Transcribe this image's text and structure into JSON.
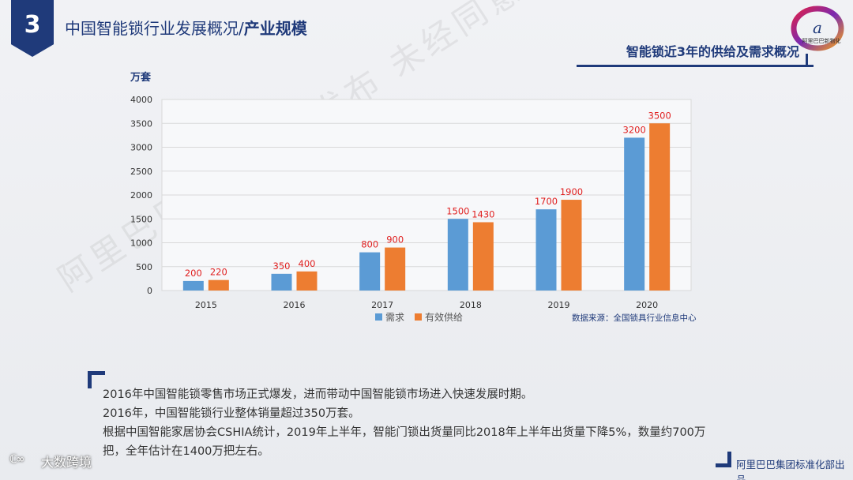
{
  "header": {
    "badge_number": "3",
    "title_main": "中国智能锁行业发展概况/",
    "title_strong": "产业规模",
    "logo_text": "阿里巴巴新物化"
  },
  "subtitle": "智能锁近3年的供给及需求概况",
  "watermark": "阿里巴巴标准化部发布 未经同意禁止转发",
  "chart_data": {
    "type": "bar",
    "unit_label": "万套",
    "categories": [
      "2015",
      "2016",
      "2017",
      "2018",
      "2019",
      "2020"
    ],
    "series": [
      {
        "name": "需求",
        "values": [
          200,
          350,
          800,
          1500,
          1700,
          3200
        ],
        "color": "#5b9bd5"
      },
      {
        "name": "有效供给",
        "values": [
          220,
          400,
          900,
          1430,
          1900,
          3500
        ],
        "color": "#ed7d31"
      }
    ],
    "yticks": [
      0,
      500,
      1000,
      1500,
      2000,
      2500,
      3000,
      3500,
      4000
    ],
    "ylim": [
      0,
      4000
    ],
    "label_color": "#e02020",
    "grid": true,
    "legend_position": "bottom",
    "source": "数据来源：全国锁具行业信息中心"
  },
  "notes": [
    "2016年中国智能锁零售市场正式爆发，进而带动中国智能锁市场进入快速发展时期。",
    "2016年，中国智能锁行业整体销量超过350万套。",
    "根据中国智能家居协会CSHIA统计，2019年上半年，智能门锁出货量同比2018年上半年出货量下降5%，数量约700万把，全年估计在1400万把左右。"
  ],
  "footer": {
    "right": "阿里巴巴集团标准化部出品",
    "left_icon": "ℂ∞",
    "left_text": "大数跨境"
  }
}
